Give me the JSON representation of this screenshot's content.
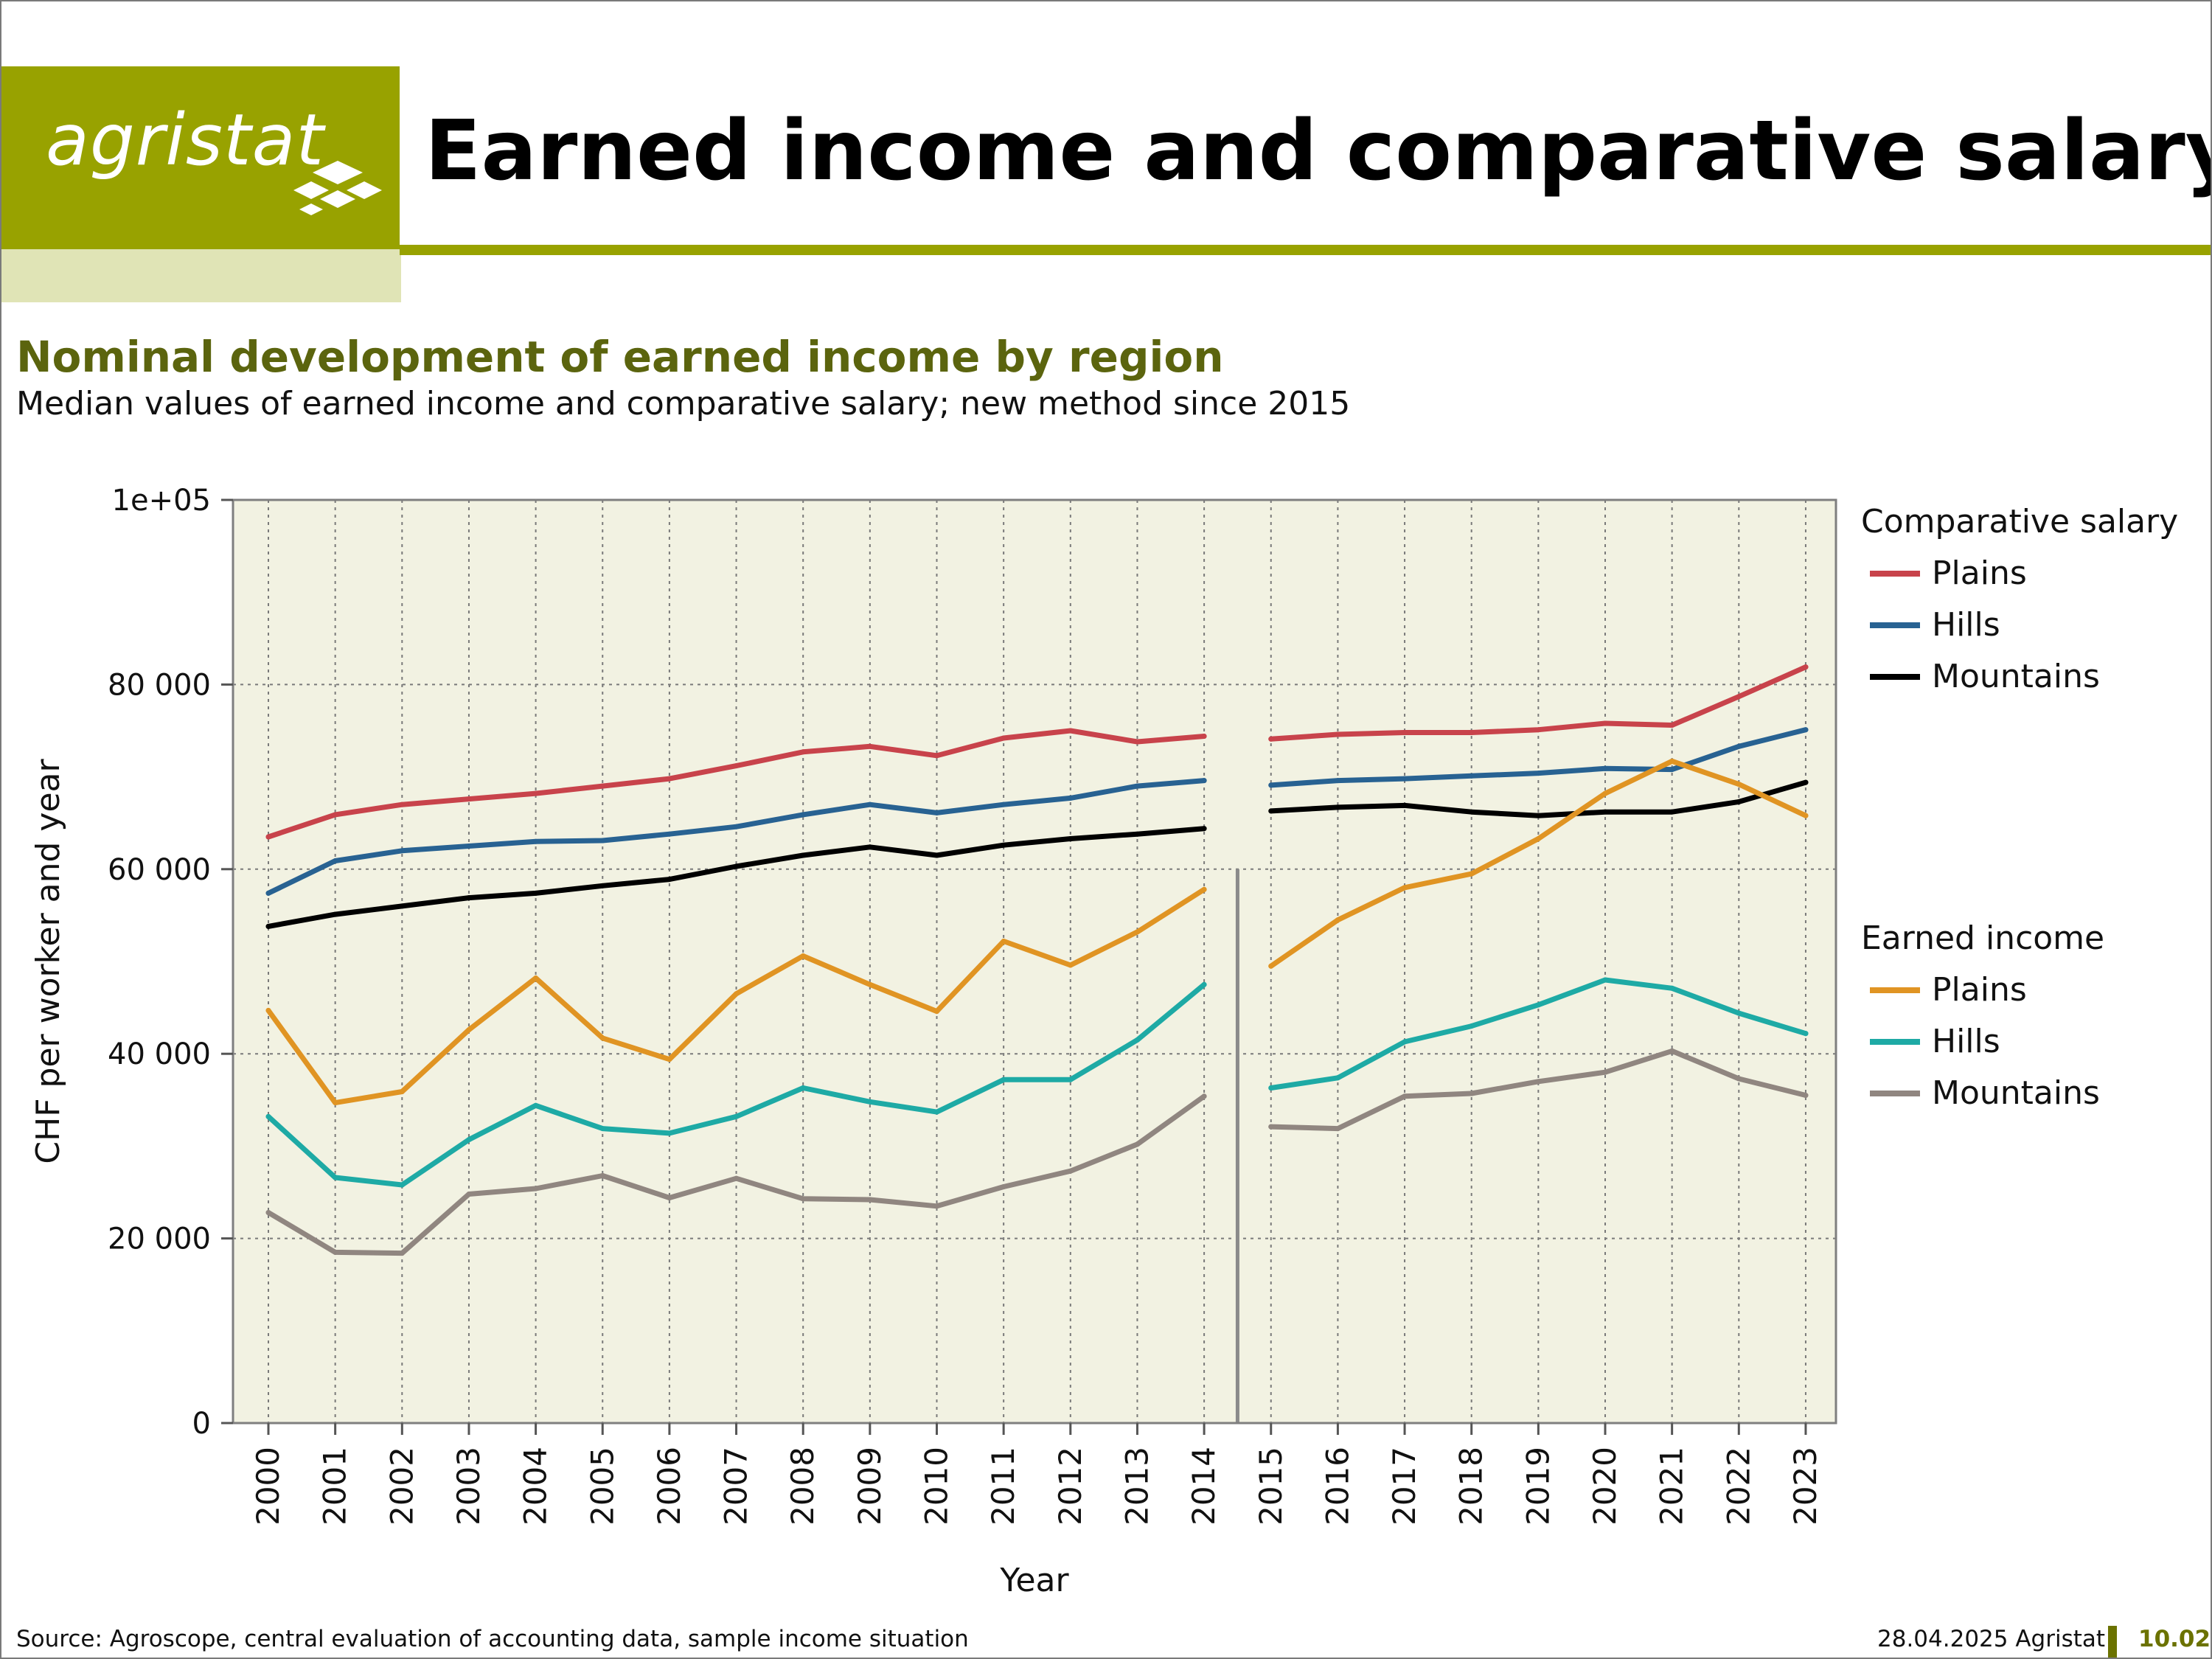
{
  "header": {
    "logo_text": "agristat",
    "title": "Earned income and comparative salary"
  },
  "subtitle": "Nominal development of earned income by region",
  "description": "Median values of earned income and comparative salary; new method since 2015",
  "footer": {
    "source": "Source: Agroscope, central evaluation of accounting data, sample income situation",
    "date": "28.04.2025 Agristat",
    "page": "10.02"
  },
  "colors": {
    "cs_plains": "#c8434b",
    "cs_hills": "#286292",
    "cs_mountains": "#000000",
    "ei_plains": "#e09423",
    "ei_hills": "#1eaaa5",
    "ei_mountains": "#908680",
    "plot_bg": "#f2f2e2",
    "brand": "#98a200"
  },
  "chart_data": {
    "type": "line",
    "xlabel": "Year",
    "ylabel": "CHF per worker and year",
    "ylim": [
      0,
      100000
    ],
    "yticks": [
      0,
      20000,
      40000,
      60000,
      80000,
      100000
    ],
    "ytick_labels": [
      "0",
      "20 000",
      "40 000",
      "60 000",
      "80 000",
      "1e+05"
    ],
    "categories": [
      "2000",
      "2001",
      "2002",
      "2003",
      "2004",
      "2005",
      "2006",
      "2007",
      "2008",
      "2009",
      "2010",
      "2011",
      "2012",
      "2013",
      "2014",
      "2015",
      "2016",
      "2017",
      "2018",
      "2019",
      "2020",
      "2021",
      "2022",
      "2023"
    ],
    "method_break_between": [
      "2014",
      "2015"
    ],
    "grid": true,
    "legend_groups": [
      {
        "title": "Comparative salary",
        "entries": [
          "Plains",
          "Hills",
          "Mountains"
        ]
      },
      {
        "title": "Earned income",
        "entries": [
          "Plains",
          "Hills",
          "Mountains"
        ]
      }
    ],
    "series": [
      {
        "group": "Comparative salary",
        "name": "Plains",
        "color_key": "cs_plains",
        "values": [
          63500,
          65900,
          67000,
          67600,
          68200,
          69000,
          69800,
          71200,
          72700,
          73300,
          72300,
          74200,
          75000,
          73800,
          74400,
          74100,
          74600,
          74800,
          74800,
          75100,
          75800,
          75600,
          78700,
          81900
        ]
      },
      {
        "group": "Comparative salary",
        "name": "Hills",
        "color_key": "cs_hills",
        "values": [
          57400,
          60900,
          62000,
          62500,
          63000,
          63100,
          63800,
          64600,
          65900,
          67000,
          66100,
          67000,
          67700,
          69000,
          69600,
          69100,
          69600,
          69800,
          70100,
          70400,
          70900,
          70800,
          73300,
          75100
        ]
      },
      {
        "group": "Comparative salary",
        "name": "Mountains",
        "color_key": "cs_mountains",
        "values": [
          53800,
          55100,
          56000,
          56900,
          57400,
          58200,
          58900,
          60300,
          61500,
          62400,
          61500,
          62600,
          63300,
          63800,
          64400,
          66300,
          66700,
          66900,
          66200,
          65800,
          66200,
          66200,
          67300,
          69400
        ]
      },
      {
        "group": "Earned income",
        "name": "Plains",
        "color_key": "ei_plains",
        "values": [
          44700,
          34700,
          35900,
          42600,
          48200,
          41700,
          39400,
          46500,
          50600,
          47500,
          44600,
          52200,
          49600,
          53200,
          57800,
          49500,
          54500,
          58000,
          59500,
          63300,
          68200,
          71700,
          69200,
          65800
        ]
      },
      {
        "group": "Earned income",
        "name": "Hills",
        "color_key": "ei_hills",
        "values": [
          33200,
          26600,
          25800,
          30700,
          34400,
          31900,
          31400,
          33200,
          36300,
          34800,
          33700,
          37200,
          37200,
          41500,
          47500,
          36300,
          37400,
          41300,
          43000,
          45300,
          48000,
          47100,
          44400,
          42200
        ]
      },
      {
        "group": "Earned income",
        "name": "Mountains",
        "color_key": "ei_mountains",
        "values": [
          22800,
          18500,
          18400,
          24800,
          25400,
          26800,
          24400,
          26500,
          24300,
          24200,
          23500,
          25600,
          27300,
          30200,
          35400,
          32100,
          31900,
          35400,
          35700,
          37000,
          38000,
          40300,
          37300,
          35500
        ]
      }
    ]
  }
}
